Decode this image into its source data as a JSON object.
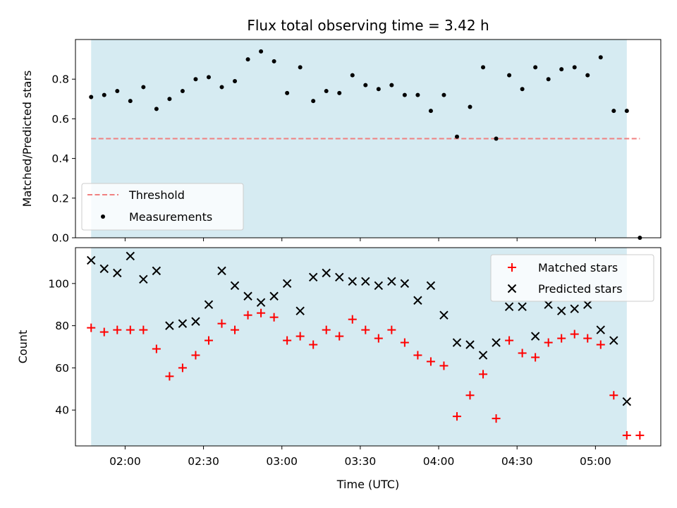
{
  "chart_data": [
    {
      "type": "scatter",
      "title": "Flux total observing time = 3.42 h",
      "xlabel": "",
      "ylabel": "Matched/Predicted stars",
      "xlim": [
        "01:41",
        "05:25"
      ],
      "ylim": [
        0,
        1.0
      ],
      "y_ticks": [
        "0.0",
        "0.2",
        "0.4",
        "0.6",
        "0.8"
      ],
      "shaded_span": [
        "01:47",
        "05:12"
      ],
      "shaded_color": "#add8e6",
      "legend_position": "lower-left",
      "threshold": {
        "name": "Threshold",
        "value": 0.5,
        "x_range": [
          "01:47",
          "05:17"
        ],
        "color": "#f08080",
        "style": "dashed"
      },
      "series": [
        {
          "name": "Measurements",
          "color": "#000000",
          "marker": "dot",
          "x": [
            "01:47",
            "01:52",
            "01:57",
            "02:02",
            "02:07",
            "02:12",
            "02:17",
            "02:22",
            "02:27",
            "02:32",
            "02:37",
            "02:42",
            "02:47",
            "02:52",
            "02:57",
            "03:02",
            "03:07",
            "03:12",
            "03:17",
            "03:22",
            "03:27",
            "03:32",
            "03:37",
            "03:42",
            "03:47",
            "03:52",
            "03:57",
            "04:02",
            "04:07",
            "04:12",
            "04:17",
            "04:22",
            "04:27",
            "04:32",
            "04:37",
            "04:42",
            "04:47",
            "04:52",
            "04:57",
            "05:02",
            "05:07",
            "05:12",
            "05:17"
          ],
          "y": [
            0.71,
            0.72,
            0.74,
            0.69,
            0.76,
            0.65,
            0.7,
            0.74,
            0.8,
            0.81,
            0.76,
            0.79,
            0.9,
            0.94,
            0.89,
            0.73,
            0.86,
            0.69,
            0.74,
            0.73,
            0.82,
            0.77,
            0.75,
            0.77,
            0.72,
            0.72,
            0.64,
            0.72,
            0.51,
            0.66,
            0.86,
            0.5,
            0.82,
            0.75,
            0.86,
            0.8,
            0.85,
            0.86,
            0.82,
            0.91,
            0.64,
            0.64,
            0.0
          ]
        }
      ]
    },
    {
      "type": "scatter",
      "title": "",
      "xlabel": "Time (UTC)",
      "ylabel": "Count",
      "xlim": [
        "01:41",
        "05:25"
      ],
      "ylim": [
        23,
        117
      ],
      "x_ticks": [
        "02:00",
        "02:30",
        "03:00",
        "03:30",
        "04:00",
        "04:30",
        "05:00"
      ],
      "y_ticks": [
        "40",
        "60",
        "80",
        "100"
      ],
      "shaded_span": [
        "01:47",
        "05:12"
      ],
      "shaded_color": "#add8e6",
      "legend_position": "upper-right",
      "series": [
        {
          "name": "Matched stars",
          "color": "#ff0000",
          "marker": "plus",
          "x": [
            "01:47",
            "01:52",
            "01:57",
            "02:02",
            "02:07",
            "02:12",
            "02:17",
            "02:22",
            "02:27",
            "02:32",
            "02:37",
            "02:42",
            "02:47",
            "02:52",
            "02:57",
            "03:02",
            "03:07",
            "03:12",
            "03:17",
            "03:22",
            "03:27",
            "03:32",
            "03:37",
            "03:42",
            "03:47",
            "03:52",
            "03:57",
            "04:02",
            "04:07",
            "04:12",
            "04:17",
            "04:22",
            "04:27",
            "04:32",
            "04:37",
            "04:42",
            "04:47",
            "04:52",
            "04:57",
            "05:02",
            "05:07",
            "05:12",
            "05:17"
          ],
          "y": [
            79,
            77,
            78,
            78,
            78,
            69,
            56,
            60,
            66,
            73,
            81,
            78,
            85,
            86,
            84,
            73,
            75,
            71,
            78,
            75,
            83,
            78,
            74,
            78,
            72,
            66,
            63,
            61,
            37,
            47,
            57,
            36,
            73,
            67,
            65,
            72,
            74,
            76,
            74,
            71,
            47,
            28,
            28
          ]
        },
        {
          "name": "Predicted stars",
          "color": "#000000",
          "marker": "x",
          "x": [
            "01:47",
            "01:52",
            "01:57",
            "02:02",
            "02:07",
            "02:12",
            "02:17",
            "02:22",
            "02:27",
            "02:32",
            "02:37",
            "02:42",
            "02:47",
            "02:52",
            "02:57",
            "03:02",
            "03:07",
            "03:12",
            "03:17",
            "03:22",
            "03:27",
            "03:32",
            "03:37",
            "03:42",
            "03:47",
            "03:52",
            "03:57",
            "04:02",
            "04:07",
            "04:12",
            "04:17",
            "04:22",
            "04:27",
            "04:32",
            "04:37",
            "04:42",
            "04:47",
            "04:52",
            "04:57",
            "05:02",
            "05:07",
            "05:12"
          ],
          "y": [
            111,
            107,
            105,
            113,
            102,
            106,
            80,
            81,
            82,
            90,
            106,
            99,
            94,
            91,
            94,
            100,
            87,
            103,
            105,
            103,
            101,
            101,
            99,
            101,
            100,
            92,
            99,
            85,
            72,
            71,
            66,
            72,
            89,
            89,
            75,
            90,
            87,
            88,
            90,
            78,
            73,
            44
          ]
        }
      ]
    }
  ]
}
